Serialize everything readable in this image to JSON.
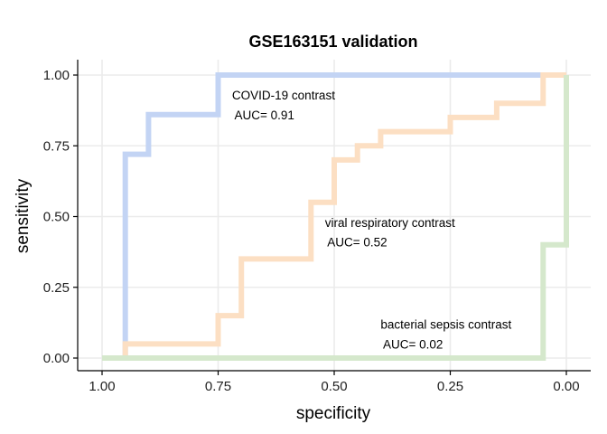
{
  "chart_data": {
    "type": "line",
    "title": "GSE163151 validation",
    "xlabel": "specificity",
    "ylabel": "sensitivity",
    "xlim": [
      1.0,
      0.0
    ],
    "ylim": [
      0.0,
      1.0
    ],
    "x_reversed": true,
    "grid": true,
    "legend": "none",
    "x_ticks": [
      "1.00",
      "0.75",
      "0.50",
      "0.25",
      "0.00"
    ],
    "y_ticks": [
      "0.00",
      "0.25",
      "0.50",
      "0.75",
      "1.00"
    ],
    "series": [
      {
        "color": "#c3d4f4",
        "points": [
          [
            1.0,
            0.0
          ],
          [
            0.95,
            0.0
          ],
          [
            0.95,
            0.72
          ],
          [
            0.9,
            0.72
          ],
          [
            0.9,
            0.86
          ],
          [
            0.75,
            0.86
          ],
          [
            0.75,
            1.0
          ],
          [
            0.0,
            1.0
          ]
        ]
      },
      {
        "color": "#fcdfc3",
        "points": [
          [
            1.0,
            0.0
          ],
          [
            0.95,
            0.0
          ],
          [
            0.95,
            0.05
          ],
          [
            0.75,
            0.05
          ],
          [
            0.75,
            0.15
          ],
          [
            0.7,
            0.15
          ],
          [
            0.7,
            0.35
          ],
          [
            0.55,
            0.35
          ],
          [
            0.55,
            0.55
          ],
          [
            0.5,
            0.55
          ],
          [
            0.5,
            0.7
          ],
          [
            0.45,
            0.7
          ],
          [
            0.45,
            0.75
          ],
          [
            0.4,
            0.75
          ],
          [
            0.4,
            0.8
          ],
          [
            0.25,
            0.8
          ],
          [
            0.25,
            0.85
          ],
          [
            0.15,
            0.85
          ],
          [
            0.15,
            0.9
          ],
          [
            0.05,
            0.9
          ],
          [
            0.05,
            1.0
          ],
          [
            0.0,
            1.0
          ]
        ]
      },
      {
        "color": "#d5e8cc",
        "points": [
          [
            1.0,
            0.0
          ],
          [
            0.05,
            0.0
          ],
          [
            0.05,
            0.4
          ],
          [
            0.0,
            0.4
          ],
          [
            0.0,
            1.0
          ]
        ]
      }
    ],
    "annotations": [
      {
        "text": "COVID-19 contrast",
        "x": 0.72,
        "y": 0.93
      },
      {
        "text": "AUC= 0.91",
        "x": 0.715,
        "y": 0.86
      },
      {
        "text": "viral respiratory contrast",
        "x": 0.52,
        "y": 0.48
      },
      {
        "text": "AUC= 0.52",
        "x": 0.515,
        "y": 0.41
      },
      {
        "text": "bacterial sepsis contrast",
        "x": 0.4,
        "y": 0.12
      },
      {
        "text": "AUC= 0.02",
        "x": 0.395,
        "y": 0.05
      }
    ]
  }
}
